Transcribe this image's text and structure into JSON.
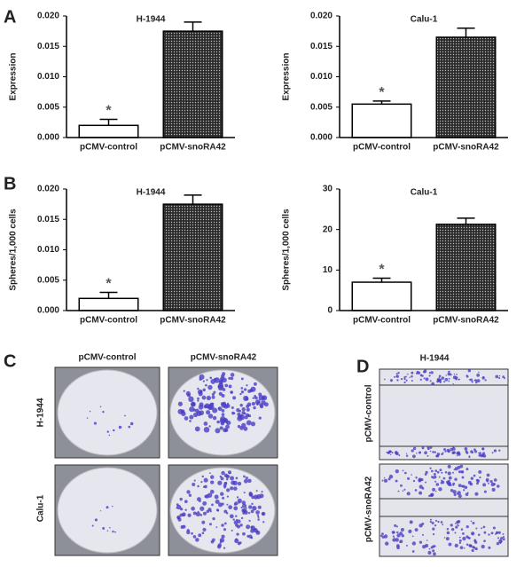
{
  "chart_data": [
    {
      "type": "bar",
      "title": "H-1944",
      "y_label": "Expression",
      "categories": [
        "pCMV-control",
        "pCMV-snoRA42"
      ],
      "values": [
        0.002,
        0.0175
      ],
      "errors": [
        0.001,
        0.0015
      ],
      "annotations": [
        "*",
        null
      ],
      "colors": [
        "#ffffff",
        "#2a2a2a"
      ],
      "ylim": [
        0,
        0.02
      ],
      "yticks": [
        {
          "value": 0,
          "label": "0.000"
        },
        {
          "value": 0.005,
          "label": "0.005"
        },
        {
          "value": 0.01,
          "label": "0.010"
        },
        {
          "value": 0.015,
          "label": "0.015"
        },
        {
          "value": 0.02,
          "label": "0.020"
        }
      ]
    },
    {
      "type": "bar",
      "title": "Calu-1",
      "y_label": "Expression",
      "categories": [
        "pCMV-control",
        "pCMV-snoRA42"
      ],
      "values": [
        0.0055,
        0.0165
      ],
      "errors": [
        0.0005,
        0.0015
      ],
      "annotations": [
        "*",
        null
      ],
      "colors": [
        "#ffffff",
        "#2a2a2a"
      ],
      "ylim": [
        0,
        0.02
      ],
      "yticks": [
        {
          "value": 0,
          "label": "0.000"
        },
        {
          "value": 0.005,
          "label": "0.005"
        },
        {
          "value": 0.01,
          "label": "0.010"
        },
        {
          "value": 0.015,
          "label": "0.015"
        },
        {
          "value": 0.02,
          "label": "0.020"
        }
      ]
    },
    {
      "type": "bar",
      "title": "H-1944",
      "y_label": "Spheres/1,000 cells",
      "categories": [
        "pCMV-control",
        "pCMV-snoRA42"
      ],
      "values": [
        0.002,
        0.0175
      ],
      "errors": [
        0.001,
        0.0015
      ],
      "annotations": [
        "*",
        null
      ],
      "colors": [
        "#ffffff",
        "#2a2a2a"
      ],
      "ylim": [
        0,
        0.02
      ],
      "yticks": [
        {
          "value": 0,
          "label": "0.000"
        },
        {
          "value": 0.005,
          "label": "0.005"
        },
        {
          "value": 0.01,
          "label": "0.010"
        },
        {
          "value": 0.015,
          "label": "0.015"
        },
        {
          "value": 0.02,
          "label": "0.020"
        }
      ]
    },
    {
      "type": "bar",
      "title": "Calu-1",
      "y_label": "Spheres/1,000 cells",
      "categories": [
        "pCMV-control",
        "pCMV-snoRA42"
      ],
      "values": [
        7,
        21.3
      ],
      "errors": [
        1,
        1.5
      ],
      "annotations": [
        "*",
        null
      ],
      "colors": [
        "#ffffff",
        "#2a2a2a"
      ],
      "ylim": [
        0,
        30
      ],
      "yticks": [
        0,
        10,
        20,
        30
      ]
    }
  ],
  "panel_labels": [
    "A",
    "B",
    "C",
    "D"
  ],
  "panel_c": {
    "columns": [
      "pCMV-control",
      "pCMV-snoRA42"
    ],
    "rows": [
      "H-1944",
      "Calu-1"
    ]
  },
  "panel_d": {
    "title": "H-1944",
    "rows": [
      "pCMV-control",
      "pCMV-snoRA42"
    ]
  }
}
